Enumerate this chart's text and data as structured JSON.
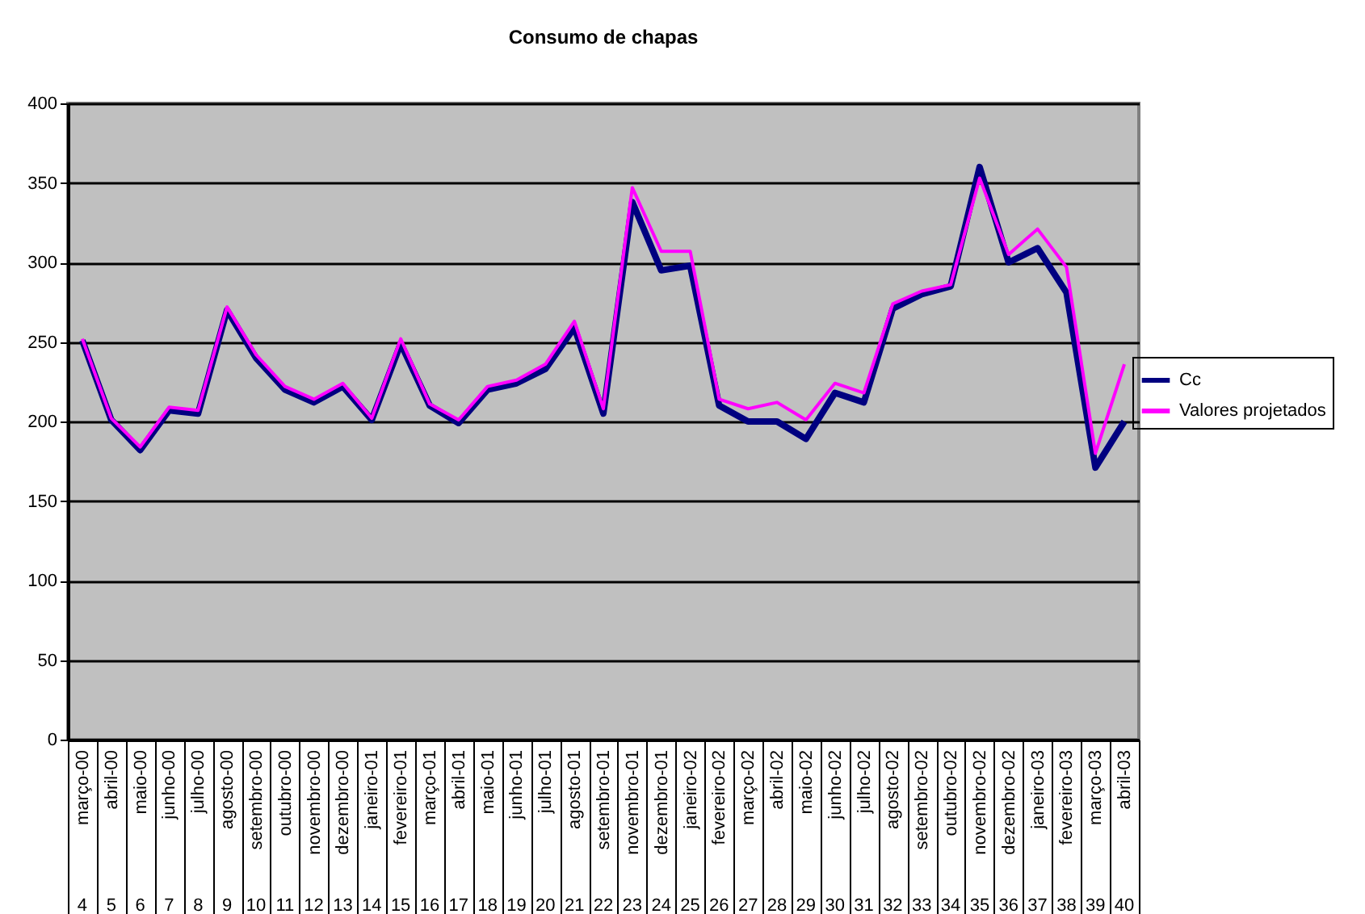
{
  "chart_data": {
    "type": "line",
    "title": "Consumo de chapas",
    "categories": [
      "março-00",
      "abril-00",
      "maio-00",
      "junho-00",
      "julho-00",
      "agosto-00",
      "setembro-00",
      "outubro-00",
      "novembro-00",
      "dezembro-00",
      "janeiro-01",
      "fevereiro-01",
      "março-01",
      "abril-01",
      "maio-01",
      "junho-01",
      "julho-01",
      "agosto-01",
      "setembro-01",
      "novembro-01",
      "dezembro-01",
      "janeiro-02",
      "fevereiro-02",
      "março-02",
      "abril-02",
      "maio-02",
      "junho-02",
      "julho-02",
      "agosto-02",
      "setembro-02",
      "outubro-02",
      "novembro-02",
      "dezembro-02",
      "janeiro-03",
      "fevereiro-03",
      "março-03",
      "abril-03"
    ],
    "series": [
      {
        "name": "Cc",
        "color": "#000080",
        "values": [
          251,
          201,
          182,
          207,
          205,
          270,
          240,
          220,
          212,
          222,
          201,
          249,
          210,
          199,
          220,
          224,
          233,
          259,
          205,
          338,
          295,
          298,
          210,
          200,
          200,
          189,
          218,
          212,
          271,
          280,
          285,
          360,
          300,
          309,
          281,
          171,
          200
        ]
      },
      {
        "name": "Valores projetados",
        "color": "#ff00ff",
        "values": [
          252,
          202,
          184,
          209,
          207,
          272,
          242,
          222,
          214,
          224,
          202,
          252,
          211,
          201,
          222,
          226,
          236,
          263,
          208,
          347,
          307,
          307,
          214,
          208,
          212,
          201,
          224,
          218,
          274,
          282,
          286,
          353,
          305,
          321,
          297,
          180,
          236
        ]
      }
    ],
    "annotations": [
      "4",
      "5",
      "6",
      "7",
      "8",
      "9",
      "10",
      "11",
      "12",
      "13",
      "14",
      "15",
      "16",
      "17",
      "18",
      "19",
      "20",
      "21",
      "22",
      "23",
      "24",
      "25",
      "26",
      "27",
      "28",
      "29",
      "30",
      "31",
      "32",
      "33",
      "34",
      "35",
      "36",
      "37",
      "38",
      "39",
      "40"
    ],
    "ylim": [
      0,
      400
    ],
    "yticks": [
      0,
      50,
      100,
      150,
      200,
      250,
      300,
      350,
      400
    ],
    "grid": "y",
    "legend": "right"
  }
}
